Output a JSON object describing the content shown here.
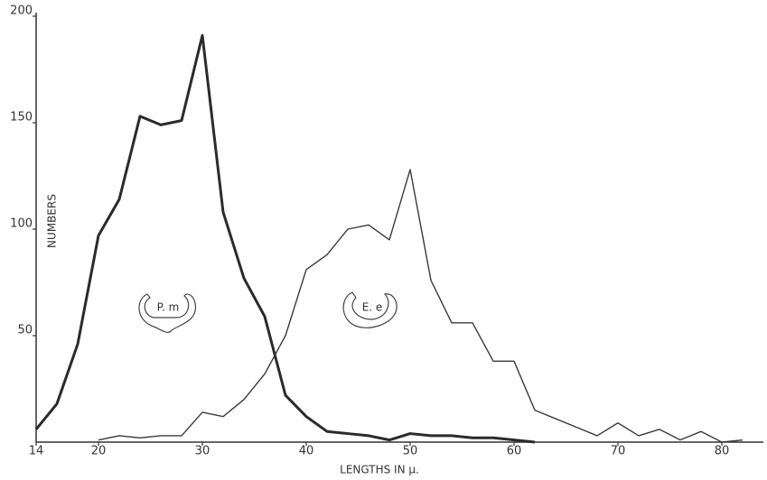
{
  "chart_data": {
    "type": "line",
    "x_label": "LENGTHS IN μ.",
    "y_label": "NUMBERS",
    "x": [
      14,
      16,
      18,
      20,
      22,
      24,
      26,
      28,
      30,
      32,
      34,
      36,
      38,
      40,
      42,
      44,
      46,
      48,
      50,
      52,
      54,
      56,
      58,
      60,
      62,
      64,
      66,
      68,
      70,
      72,
      74,
      76,
      78,
      80,
      82
    ],
    "series": [
      {
        "name": "P. m",
        "color": "#2b2b2b",
        "values": [
          6,
          18,
          46,
          97,
          114,
          153,
          149,
          151,
          191,
          108,
          77,
          59,
          22,
          12,
          5,
          4,
          3,
          1,
          4,
          3,
          3,
          2,
          2,
          1,
          0,
          null,
          null,
          null,
          null,
          null,
          null,
          null,
          null,
          null,
          null
        ]
      },
      {
        "name": "E. e",
        "color": "#3a3a3a",
        "values": [
          null,
          null,
          null,
          1,
          3,
          2,
          3,
          3,
          14,
          12,
          20,
          32,
          50,
          81,
          88,
          100,
          102,
          95,
          128,
          76,
          56,
          56,
          38,
          38,
          15,
          11,
          7,
          3,
          9,
          3,
          6,
          1,
          5,
          0,
          1
        ]
      }
    ],
    "xlim": [
      14,
      84
    ],
    "ylim": [
      0,
      200
    ],
    "xticks": [
      14,
      20,
      30,
      40,
      50,
      60,
      70,
      80
    ],
    "yticks": [
      50,
      100,
      150,
      200
    ],
    "grid": false
  }
}
